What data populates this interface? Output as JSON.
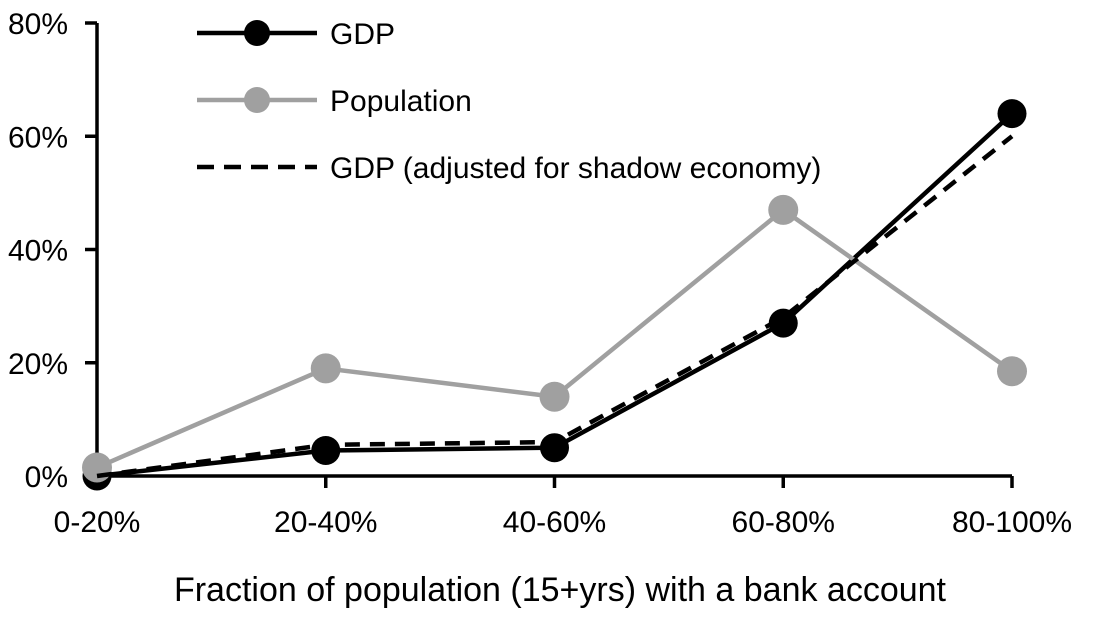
{
  "figure": {
    "background": "#ffffff",
    "axis_color": "#000000"
  },
  "chart_data": {
    "type": "line",
    "title": "",
    "xlabel": "Fraction of population (15+yrs) with a bank account",
    "ylabel": "",
    "categories": [
      "0-20%",
      "20-40%",
      "40-60%",
      "60-80%",
      "80-100%"
    ],
    "series": [
      {
        "name": "GDP",
        "color": "#000000",
        "line_style": "solid",
        "marker": "circle",
        "values": [
          0,
          4.5,
          5,
          27,
          64
        ]
      },
      {
        "name": "Population",
        "color": "#a0a0a0",
        "line_style": "solid",
        "marker": "circle",
        "values": [
          1.5,
          19,
          14,
          47,
          18.5
        ]
      },
      {
        "name": "GDP (adjusted for shadow economy)",
        "color": "#000000",
        "line_style": "dashed",
        "marker": "none",
        "values": [
          0,
          5.5,
          6,
          28,
          60
        ]
      }
    ],
    "ylim": [
      0,
      80
    ],
    "yticks": [
      {
        "value": 0,
        "label": "0%"
      },
      {
        "value": 20,
        "label": "20%"
      },
      {
        "value": 40,
        "label": "40%"
      },
      {
        "value": 60,
        "label": "60%"
      },
      {
        "value": 80,
        "label": "80%"
      }
    ],
    "grid": false,
    "legend_position": "top-left"
  }
}
